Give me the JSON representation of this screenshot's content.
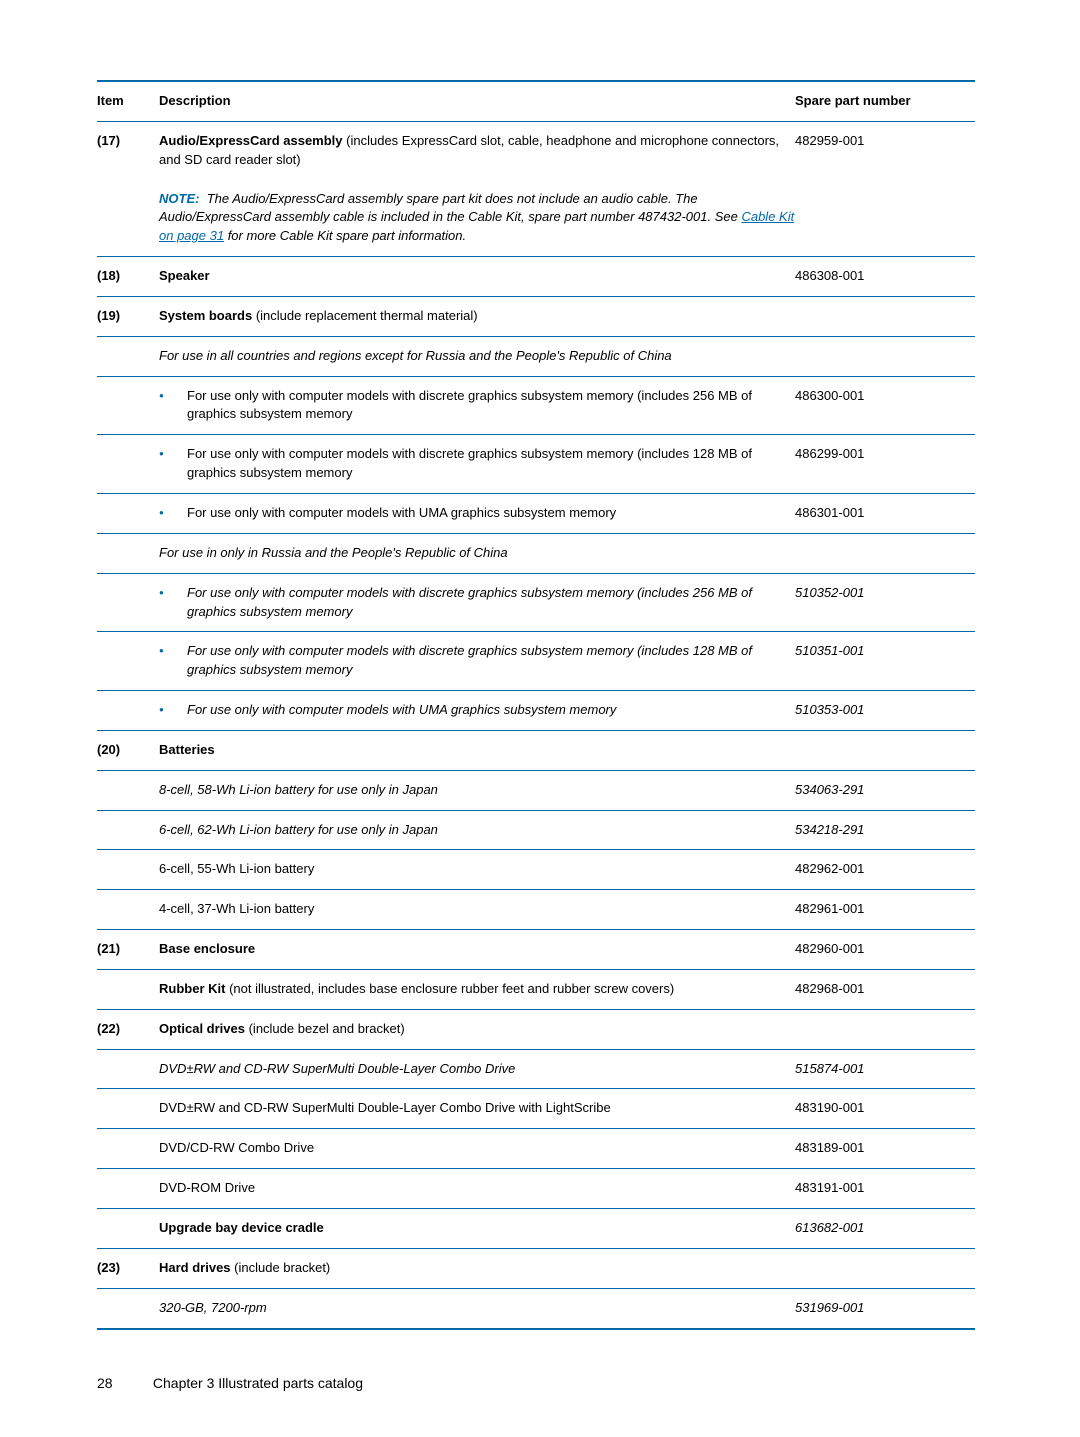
{
  "colors": {
    "rule": "#0069aa",
    "bullet": "#0069aa",
    "note_label": "#0069aa",
    "link": "#0069aa",
    "text": "#000000",
    "background": "#ffffff"
  },
  "typography": {
    "body_fontsize_pt": 10,
    "footer_fontsize_pt": 11
  },
  "header": {
    "col_item": "Item",
    "col_desc": "Description",
    "col_part": "Spare part number"
  },
  "r17": {
    "item": "(17)",
    "title": "Audio/ExpressCard assembly",
    "title_rest": " (includes ExpressCard slot, cable, headphone and microphone connectors, and SD card reader slot)",
    "part": "482959-001",
    "note_label": "NOTE:",
    "note_pre": "The Audio/ExpressCard assembly spare part kit does not include an audio cable. The Audio/ExpressCard assembly cable is included in the Cable Kit, spare part number 487432-001. See ",
    "note_link": "Cable Kit on page 31",
    "note_post": " for more Cable Kit spare part information."
  },
  "r18": {
    "item": "(18)",
    "desc": "Speaker",
    "part": "486308-001"
  },
  "r19": {
    "item": "(19)",
    "title": "System boards",
    "title_rest": " (include replacement thermal material)",
    "regionA_note": "For use in all countries and regions except for Russia and the People's Republic of China",
    "a1_desc": "For use only with computer models with discrete graphics subsystem memory (includes 256 MB of graphics subsystem memory",
    "a1_part": "486300-001",
    "a2_desc": "For use only with computer models with discrete graphics subsystem memory (includes 128 MB of graphics subsystem memory",
    "a2_part": "486299-001",
    "a3_desc": "For use only with computer models with UMA graphics subsystem memory",
    "a3_part": "486301-001",
    "regionB_note": "For use in only in Russia and the People's Republic of China",
    "b1_desc": "For use only with computer models with discrete graphics subsystem memory (includes 256 MB of graphics subsystem memory",
    "b1_part": "510352-001",
    "b2_desc": "For use only with computer models with discrete graphics subsystem memory (includes 128 MB of graphics subsystem memory",
    "b2_part": "510351-001",
    "b3_desc": "For use only with computer models with UMA graphics subsystem memory",
    "b3_part": "510353-001"
  },
  "r20": {
    "item": "(20)",
    "title": "Batteries",
    "a_desc": "8-cell, 58-Wh Li-ion battery for use only in Japan",
    "a_part": "534063-291",
    "b_desc": "6-cell, 62-Wh Li-ion battery for use only in Japan",
    "b_part": "534218-291",
    "c_desc": "6-cell, 55-Wh Li-ion battery",
    "c_part": "482962-001",
    "d_desc": "4-cell, 37-Wh Li-ion battery",
    "d_part": "482961-001"
  },
  "r21": {
    "item": "(21)",
    "title": "Base enclosure",
    "part": "482960-001",
    "sub_title": "Rubber Kit",
    "sub_rest": " (not illustrated, includes base enclosure rubber feet and rubber screw covers)",
    "sub_part": "482968-001"
  },
  "r22": {
    "item": "(22)",
    "title": "Optical drives",
    "title_rest": " (include bezel and bracket)",
    "a_desc": "DVD±RW and CD-RW SuperMulti Double-Layer Combo Drive",
    "a_part": "515874-001",
    "b_desc": "DVD±RW and CD-RW SuperMulti Double-Layer Combo Drive with LightScribe",
    "b_part": "483190-001",
    "c_desc": "DVD/CD-RW Combo Drive",
    "c_part": "483189-001",
    "d_desc": "DVD-ROM Drive",
    "d_part": "483191-001",
    "e_desc": "Upgrade bay device cradle",
    "e_part": "613682-001"
  },
  "r23": {
    "item": "(23)",
    "title": "Hard drives",
    "title_rest": " (include bracket)",
    "a_desc": "320-GB, 7200-rpm",
    "a_part": "531969-001"
  },
  "footer": {
    "page_number": "28",
    "chapter": "Chapter 3   Illustrated parts catalog"
  }
}
